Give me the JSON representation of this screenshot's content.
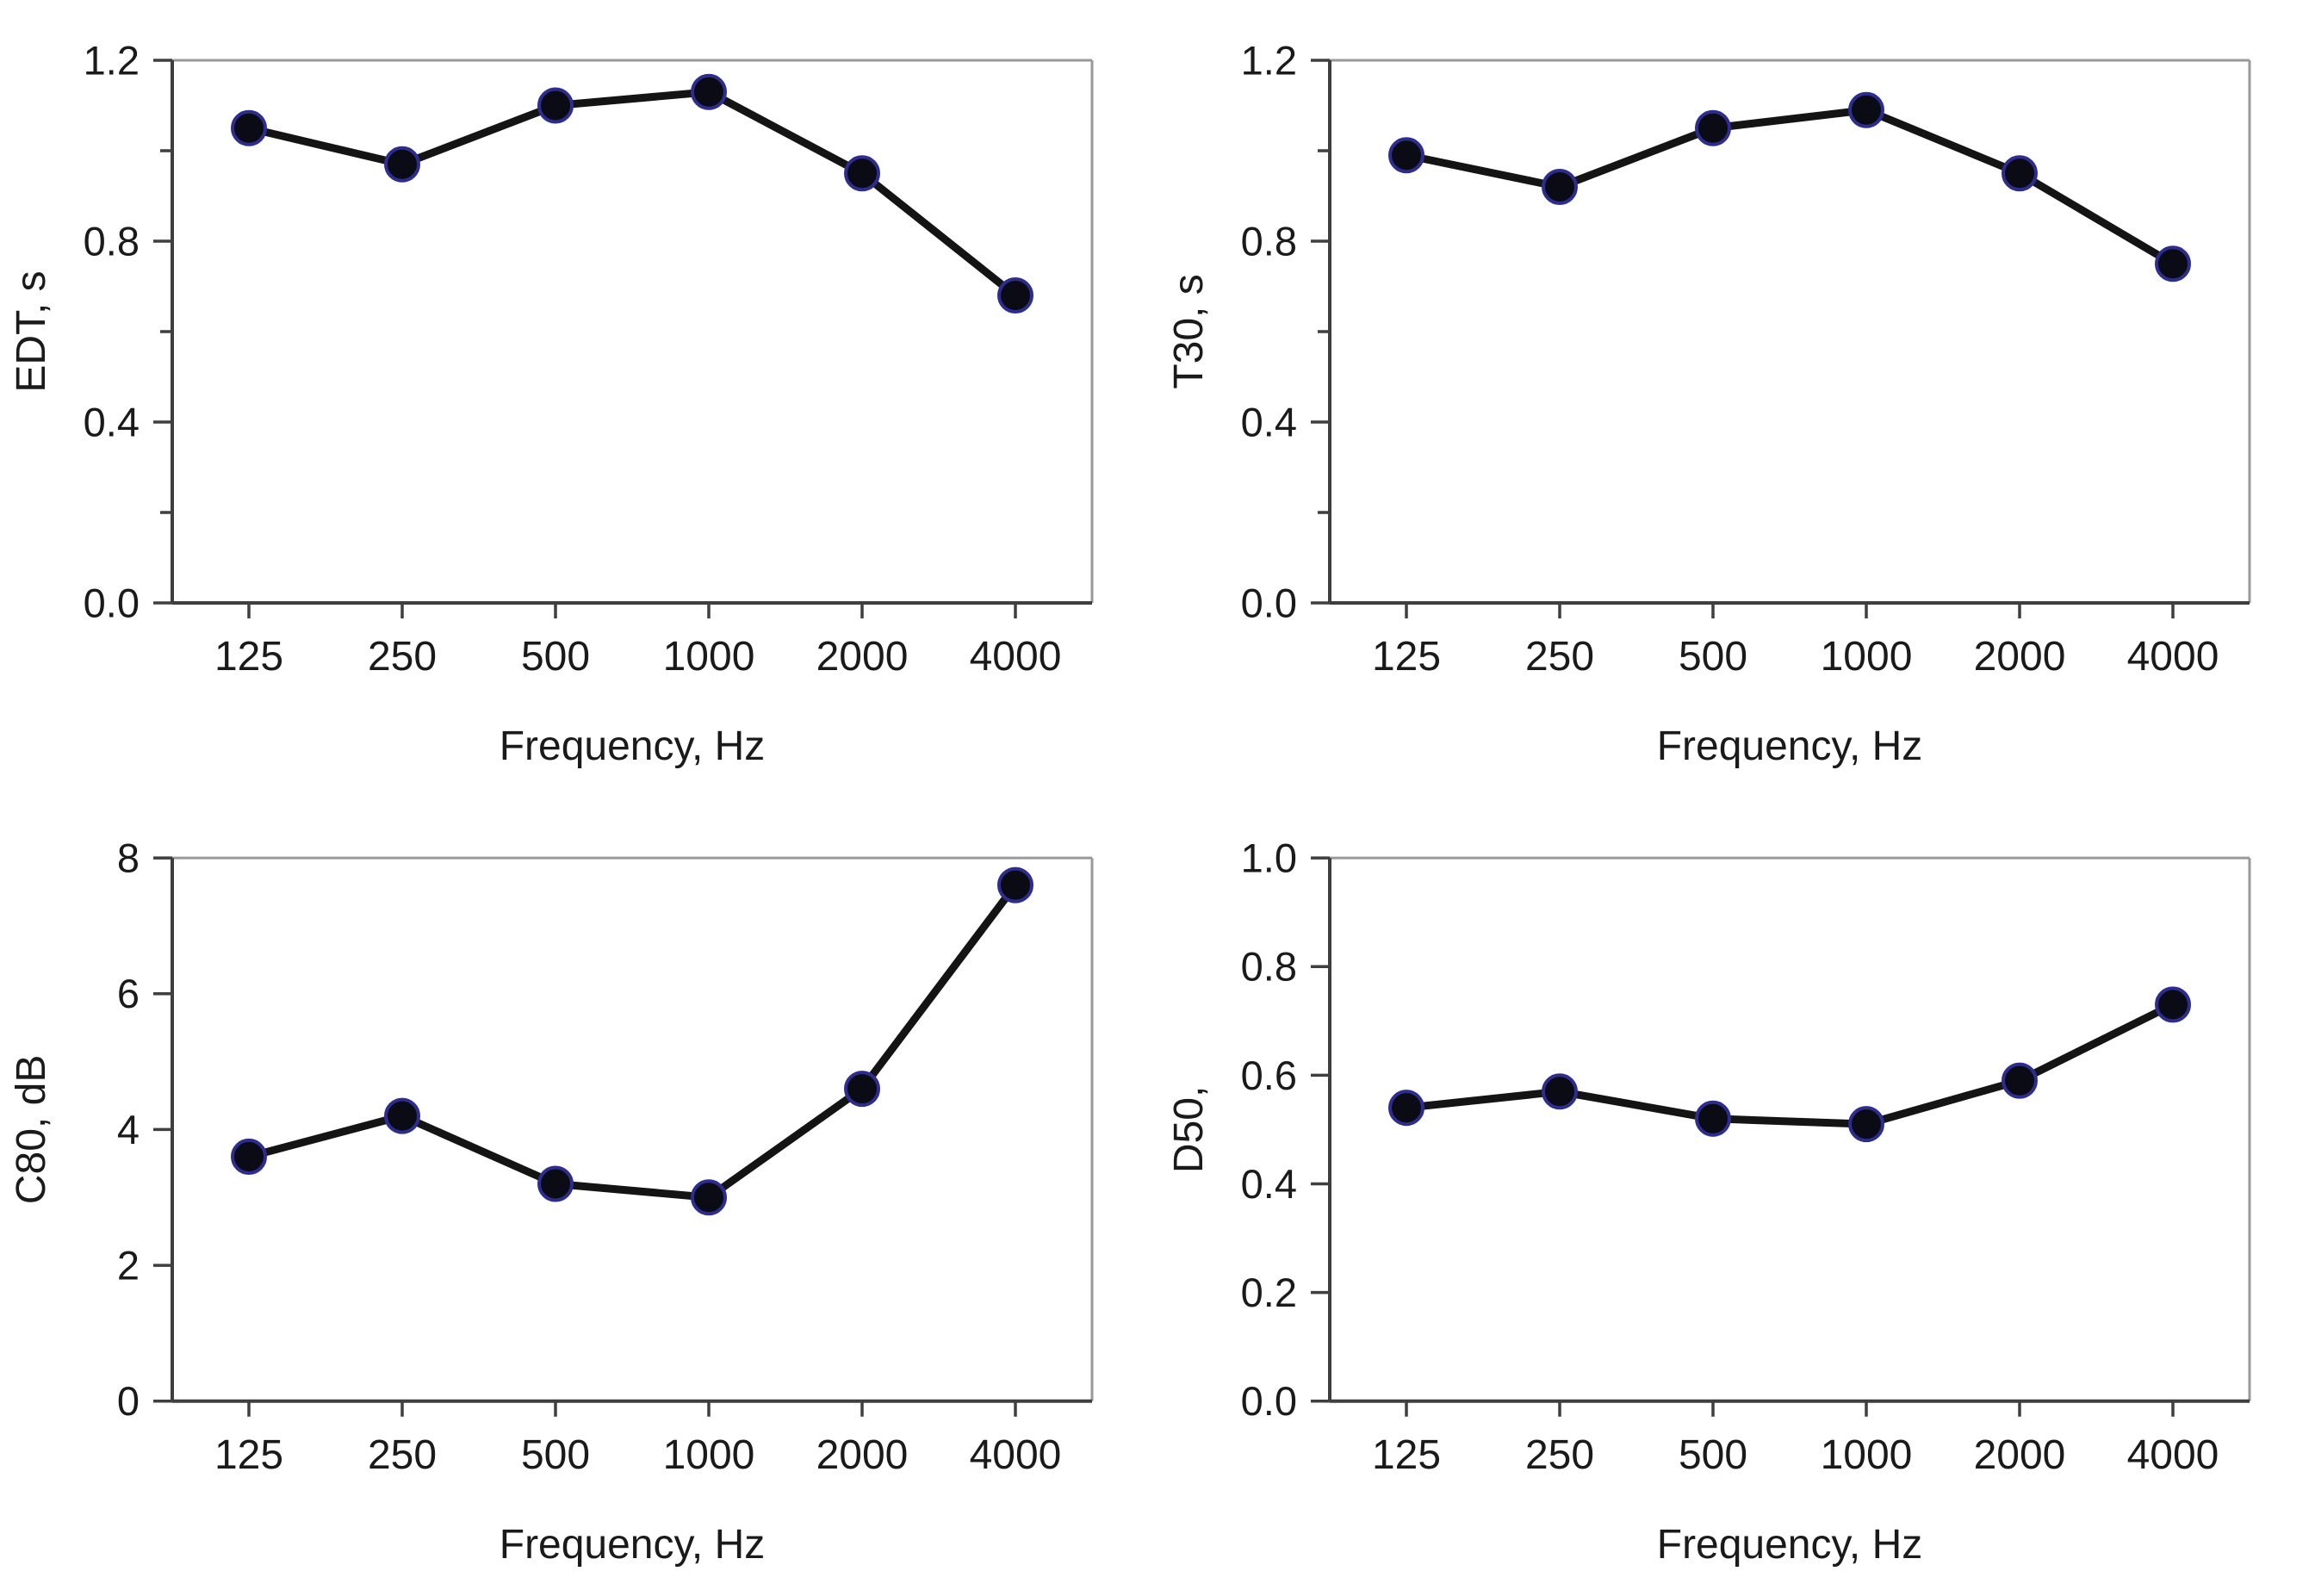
{
  "page": {
    "background": "#ffffff",
    "description_labels": {
      "frequency_axis_label": "Frequency, Hz"
    }
  },
  "style": {
    "axis_color": "#3f3f3f",
    "frame_light_color": "#999999",
    "text_color": "#1a1a1a",
    "line_color": "#141414",
    "marker_fill": "#0b0b16",
    "marker_ring": "#2d2d8f"
  },
  "chart_data": [
    {
      "type": "line",
      "id": "edt",
      "title": "",
      "ylabel": "EDT, s",
      "xlabel": "Frequency, Hz",
      "categories": [
        "125",
        "250",
        "500",
        "1000",
        "2000",
        "4000"
      ],
      "values": [
        1.05,
        0.97,
        1.1,
        1.13,
        0.95,
        0.68
      ],
      "ylim": [
        0,
        1.2
      ],
      "ytick_step": 0.2,
      "yticks_labeled": [
        0.0,
        0.4,
        0.8,
        1.2
      ],
      "ydecimals": 1,
      "grid": false,
      "legend": "none"
    },
    {
      "type": "line",
      "id": "t30",
      "title": "",
      "ylabel": "T30, s",
      "xlabel": "Frequency, Hz",
      "categories": [
        "125",
        "250",
        "500",
        "1000",
        "2000",
        "4000"
      ],
      "values": [
        0.99,
        0.92,
        1.05,
        1.09,
        0.95,
        0.75
      ],
      "ylim": [
        0,
        1.2
      ],
      "ytick_step": 0.2,
      "yticks_labeled": [
        0.0,
        0.4,
        0.8,
        1.2
      ],
      "ydecimals": 1,
      "grid": false,
      "legend": "none"
    },
    {
      "type": "line",
      "id": "c80",
      "title": "",
      "ylabel": "C80, dB",
      "xlabel": "Frequency, Hz",
      "categories": [
        "125",
        "250",
        "500",
        "1000",
        "2000",
        "4000"
      ],
      "values": [
        3.6,
        4.2,
        3.2,
        3.0,
        4.6,
        7.6
      ],
      "ylim": [
        0,
        8
      ],
      "ytick_step": 2,
      "yticks_labeled": [
        0,
        2,
        4,
        6,
        8
      ],
      "ydecimals": 0,
      "grid": false,
      "legend": "none"
    },
    {
      "type": "line",
      "id": "d50",
      "title": "",
      "ylabel": "D50,",
      "xlabel": "Frequency, Hz",
      "categories": [
        "125",
        "250",
        "500",
        "1000",
        "2000",
        "4000"
      ],
      "values": [
        0.54,
        0.57,
        0.52,
        0.51,
        0.59,
        0.73
      ],
      "ylim": [
        0,
        1.0
      ],
      "ytick_step": 0.2,
      "yticks_labeled": [
        0.0,
        0.2,
        0.4,
        0.6,
        0.8,
        1.0
      ],
      "ydecimals": 1,
      "grid": false,
      "legend": "none"
    }
  ]
}
